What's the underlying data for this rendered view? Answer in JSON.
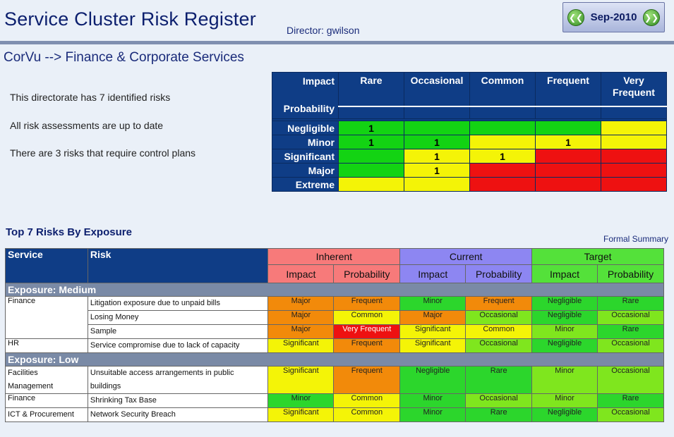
{
  "header": {
    "title": "Service Cluster Risk Register",
    "director": "Director: gwilson",
    "period": "Sep-2010"
  },
  "breadcrumb": "CorVu --> Finance & Corporate Services",
  "summary": [
    "This directorate has 7 identified risks",
    "All risk assessments are up to date",
    "There are 3 risks that require control plans"
  ],
  "matrix": {
    "impact_label": "Impact",
    "probability_label": "Probability",
    "columns": [
      "Rare",
      "Occasional",
      "Common",
      "Frequent",
      "Very Frequent"
    ],
    "rows": [
      {
        "label": "Negligible",
        "cells": [
          {
            "v": "1",
            "c": "g"
          },
          {
            "v": "",
            "c": "g"
          },
          {
            "v": "",
            "c": "g"
          },
          {
            "v": "",
            "c": "g"
          },
          {
            "v": "",
            "c": "y"
          }
        ]
      },
      {
        "label": "Minor",
        "cells": [
          {
            "v": "1",
            "c": "g"
          },
          {
            "v": "1",
            "c": "g"
          },
          {
            "v": "",
            "c": "y"
          },
          {
            "v": "1",
            "c": "y"
          },
          {
            "v": "",
            "c": "y"
          }
        ]
      },
      {
        "label": "Significant",
        "cells": [
          {
            "v": "",
            "c": "g"
          },
          {
            "v": "1",
            "c": "y"
          },
          {
            "v": "1",
            "c": "y"
          },
          {
            "v": "",
            "c": "r"
          },
          {
            "v": "",
            "c": "r"
          }
        ]
      },
      {
        "label": "Major",
        "cells": [
          {
            "v": "",
            "c": "g"
          },
          {
            "v": "1",
            "c": "y"
          },
          {
            "v": "",
            "c": "r"
          },
          {
            "v": "",
            "c": "r"
          },
          {
            "v": "",
            "c": "r"
          }
        ]
      },
      {
        "label": "Extreme",
        "cells": [
          {
            "v": "",
            "c": "y"
          },
          {
            "v": "",
            "c": "y"
          },
          {
            "v": "",
            "c": "r"
          },
          {
            "v": "",
            "c": "r"
          },
          {
            "v": "",
            "c": "r"
          }
        ]
      }
    ]
  },
  "top_risks": {
    "title": "Top 7 Risks By Exposure",
    "formal_summary_link": "Formal Summary",
    "headers": {
      "service": "Service",
      "risk": "Risk",
      "inherent": "Inherent",
      "current": "Current",
      "target": "Target",
      "impact": "Impact",
      "probability": "Probability"
    },
    "groups": [
      {
        "label": "Exposure: Medium",
        "services": [
          {
            "service": "Finance",
            "risks": [
              {
                "risk": "Litigation exposure due to unpaid bills",
                "vals": [
                  [
                    "Major",
                    "or"
                  ],
                  [
                    "Frequent",
                    "or"
                  ],
                  [
                    "Minor",
                    "gr"
                  ],
                  [
                    "Frequent",
                    "or"
                  ],
                  [
                    "Negligible",
                    "gr"
                  ],
                  [
                    "Rare",
                    "gr"
                  ]
                ]
              },
              {
                "risk": "Losing Money",
                "vals": [
                  [
                    "Major",
                    "or"
                  ],
                  [
                    "Common",
                    "ye"
                  ],
                  [
                    "Major",
                    "or"
                  ],
                  [
                    "Occasional",
                    "lg"
                  ],
                  [
                    "Negligible",
                    "gr"
                  ],
                  [
                    "Occasional",
                    "lg"
                  ]
                ]
              },
              {
                "risk": "Sample",
                "vals": [
                  [
                    "Major",
                    "or"
                  ],
                  [
                    "Very Frequent",
                    "rd"
                  ],
                  [
                    "Significant",
                    "ye"
                  ],
                  [
                    "Common",
                    "ye"
                  ],
                  [
                    "Minor",
                    "lg"
                  ],
                  [
                    "Rare",
                    "gr"
                  ]
                ]
              }
            ]
          },
          {
            "service": "HR",
            "risks": [
              {
                "risk": "Service compromise due to lack of capacity",
                "vals": [
                  [
                    "Significant",
                    "ye"
                  ],
                  [
                    "Frequent",
                    "or"
                  ],
                  [
                    "Significant",
                    "ye"
                  ],
                  [
                    "Occasional",
                    "lg"
                  ],
                  [
                    "Negligible",
                    "gr"
                  ],
                  [
                    "Occasional",
                    "lg"
                  ]
                ]
              }
            ]
          }
        ]
      },
      {
        "label": "Exposure: Low",
        "services": [
          {
            "service": "Facilities Management",
            "risks": [
              {
                "risk": "Unsuitable access arrangements in public buildings",
                "vals": [
                  [
                    "Significant",
                    "ye"
                  ],
                  [
                    "Frequent",
                    "or"
                  ],
                  [
                    "Negligible",
                    "gr"
                  ],
                  [
                    "Rare",
                    "gr"
                  ],
                  [
                    "Minor",
                    "lg"
                  ],
                  [
                    "Occasional",
                    "lg"
                  ]
                ]
              }
            ]
          },
          {
            "service": "Finance",
            "risks": [
              {
                "risk": "Shrinking Tax Base",
                "vals": [
                  [
                    "Minor",
                    "gr"
                  ],
                  [
                    "Common",
                    "ye"
                  ],
                  [
                    "Minor",
                    "gr"
                  ],
                  [
                    "Occasional",
                    "lg"
                  ],
                  [
                    "Minor",
                    "lg"
                  ],
                  [
                    "Rare",
                    "gr"
                  ]
                ]
              }
            ]
          },
          {
            "service": "ICT & Procurement",
            "risks": [
              {
                "risk": "Network Security Breach",
                "vals": [
                  [
                    "Significant",
                    "ye"
                  ],
                  [
                    "Common",
                    "ye"
                  ],
                  [
                    "Minor",
                    "gr"
                  ],
                  [
                    "Rare",
                    "gr"
                  ],
                  [
                    "Negligible",
                    "gr"
                  ],
                  [
                    "Occasional",
                    "lg"
                  ]
                ]
              }
            ]
          }
        ]
      }
    ]
  }
}
